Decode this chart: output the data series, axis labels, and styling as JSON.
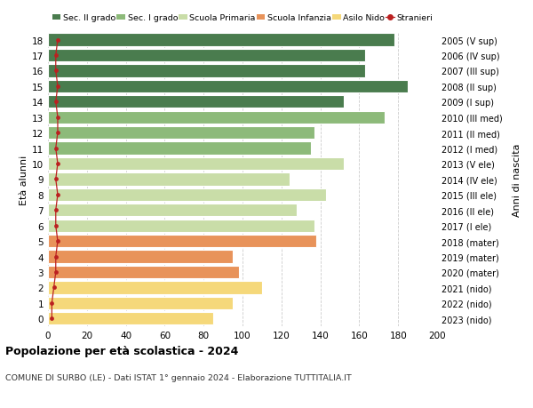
{
  "ages": [
    0,
    1,
    2,
    3,
    4,
    5,
    6,
    7,
    8,
    9,
    10,
    11,
    12,
    13,
    14,
    15,
    16,
    17,
    18
  ],
  "values": [
    85,
    95,
    110,
    98,
    95,
    138,
    137,
    128,
    143,
    124,
    152,
    135,
    137,
    173,
    152,
    185,
    163,
    163,
    178
  ],
  "colors": [
    "#f5d87a",
    "#f5d87a",
    "#f5d87a",
    "#e8935a",
    "#e8935a",
    "#e8935a",
    "#c9dda8",
    "#c9dda8",
    "#c9dda8",
    "#c9dda8",
    "#c9dda8",
    "#8dba7a",
    "#8dba7a",
    "#8dba7a",
    "#4a7c4e",
    "#4a7c4e",
    "#4a7c4e",
    "#4a7c4e",
    "#4a7c4e"
  ],
  "right_labels": [
    "2023 (nido)",
    "2022 (nido)",
    "2021 (nido)",
    "2020 (mater)",
    "2019 (mater)",
    "2018 (mater)",
    "2017 (I ele)",
    "2016 (II ele)",
    "2015 (III ele)",
    "2014 (IV ele)",
    "2013 (V ele)",
    "2012 (I med)",
    "2011 (II med)",
    "2010 (III med)",
    "2009 (I sup)",
    "2008 (II sup)",
    "2007 (III sup)",
    "2006 (IV sup)",
    "2005 (V sup)"
  ],
  "stranieri_values": [
    2,
    2,
    3,
    4,
    4,
    5,
    4,
    4,
    5,
    4,
    5,
    4,
    5,
    5,
    4,
    5,
    4,
    4,
    5
  ],
  "legend_labels": [
    "Sec. II grado",
    "Sec. I grado",
    "Scuola Primaria",
    "Scuola Infanzia",
    "Asilo Nido",
    "Stranieri"
  ],
  "legend_colors": [
    "#4a7c4e",
    "#8dba7a",
    "#c9dda8",
    "#e8935a",
    "#f5d87a",
    "#aa2222"
  ],
  "title": "Popolazione per età scolastica - 2024",
  "subtitle": "COMUNE DI SURBO (LE) - Dati ISTAT 1° gennaio 2024 - Elaborazione TUTTITALIA.IT",
  "ylabel_left": "Età alunni",
  "ylabel_right": "Anni di nascita",
  "xlim": [
    0,
    200
  ],
  "xticks": [
    0,
    20,
    40,
    60,
    80,
    100,
    120,
    140,
    160,
    180,
    200
  ],
  "bar_height": 0.82,
  "bg_color": "#ffffff",
  "grid_color": "#cccccc"
}
